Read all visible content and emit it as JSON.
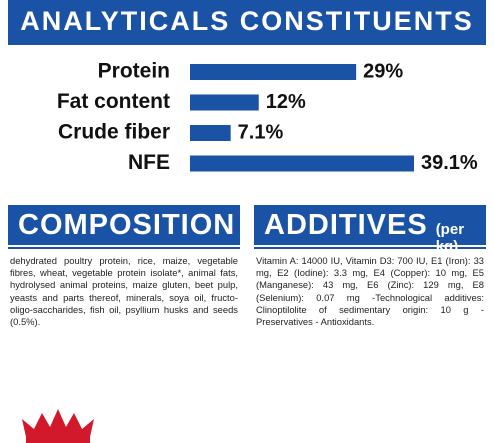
{
  "chart_data": {
    "type": "bar",
    "orientation": "horizontal",
    "title": "ANALYTICALS CONSTITUENTS",
    "categories": [
      "Protein",
      "Fat content",
      "Crude fiber",
      "NFE"
    ],
    "values": [
      29,
      12,
      7.1,
      39.1
    ],
    "value_labels": [
      "29%",
      "12%",
      "7.1%",
      "39.1%"
    ],
    "color": "#1a52a5"
  },
  "composition": {
    "title": "COMPOSITION",
    "text": "dehydrated poultry protein, rice, maize, vegetable fibres, wheat, vegetable protein isolate*, animal fats, hydrolysed animal proteins, maize gluten, beet pulp, yeasts and parts thereof, minerals, soya oil, fructo-oligo-saccharides, fish oil, psyllium husks and seeds (0.5%)."
  },
  "additives": {
    "title": "ADDITIVES",
    "subtitle": "(per kg)",
    "text": "Vitamin A: 14000 IU, Vitamin D3: 700 IU, E1 (Iron): 33 mg, E2 (Iodine): 3.3 mg, E4 (Copper): 10 mg, E5 (Manganese): 43 mg, E6 (Zinc): 129 mg, E8 (Selenium): 0.07 mg -Technological additives: Clinoptilolite of sedimentary origin: 10 g - Preservatives - Antioxidants."
  }
}
